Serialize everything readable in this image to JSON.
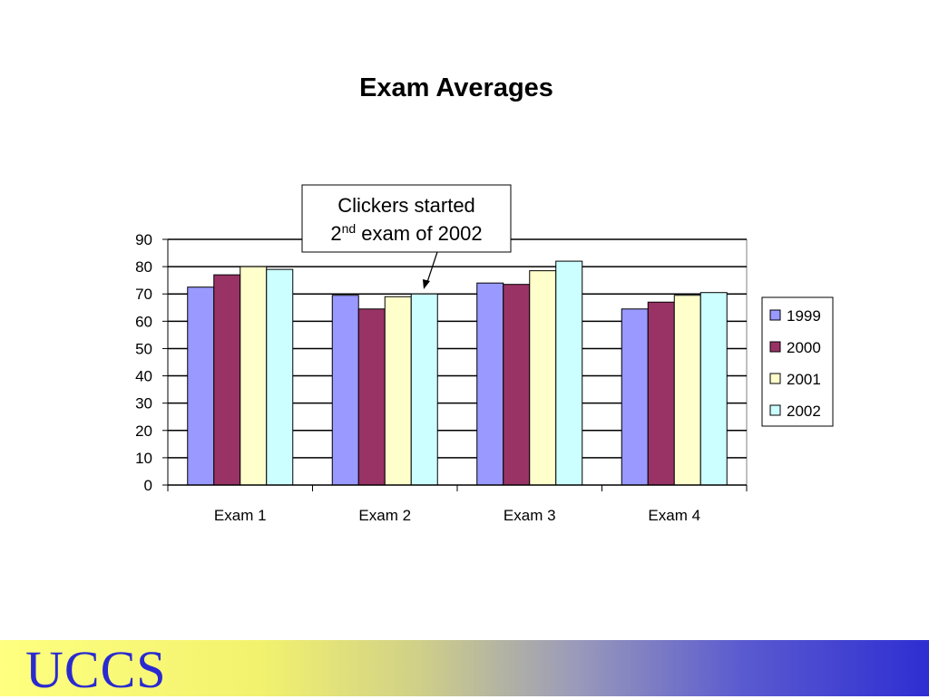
{
  "chart_data": {
    "type": "bar",
    "title": "Exam Averages",
    "xlabel": "",
    "ylabel": "",
    "categories": [
      "Exam 1",
      "Exam 2",
      "Exam 3",
      "Exam 4"
    ],
    "series": [
      {
        "name": "1999",
        "color": "#9999ff",
        "values": [
          72.5,
          69.5,
          74,
          64.5
        ]
      },
      {
        "name": "2000",
        "color": "#993366",
        "values": [
          77,
          64.5,
          73.5,
          67
        ]
      },
      {
        "name": "2001",
        "color": "#ffffcc",
        "values": [
          80,
          69,
          78.5,
          69.5
        ]
      },
      {
        "name": "2002",
        "color": "#ccffff",
        "values": [
          79,
          70,
          82,
          70.5
        ]
      }
    ],
    "ylim": [
      0,
      90
    ],
    "yticks": [
      0,
      10,
      20,
      30,
      40,
      50,
      60,
      70,
      80,
      90
    ],
    "grid": true,
    "legend": "right",
    "annotation": {
      "line1": "Clickers started",
      "line2_prefix": "2",
      "line2_sup": "nd",
      "line2_suffix": " exam of 2002",
      "target_category": "Exam 2",
      "target_series": "2002"
    }
  },
  "footer": {
    "logo": "UCCS"
  }
}
